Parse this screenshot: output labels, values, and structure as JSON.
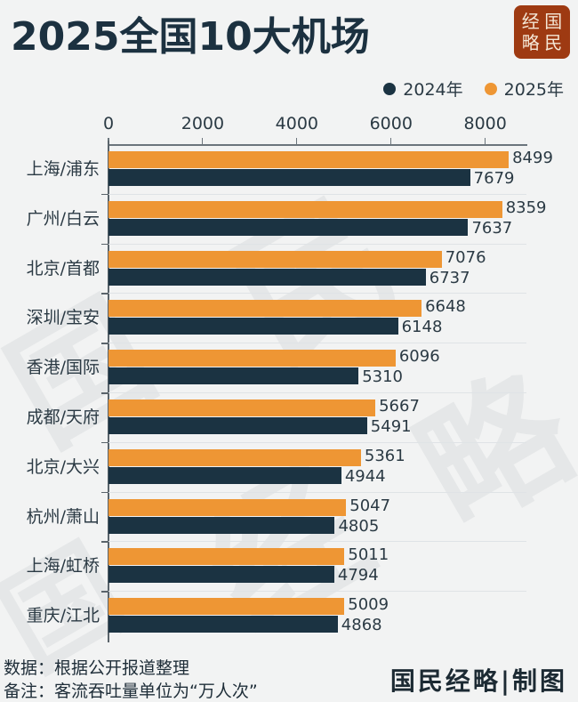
{
  "title": "2025全国10大机场",
  "logo": {
    "chars": [
      "经",
      "国",
      "略",
      "民"
    ]
  },
  "legend": [
    {
      "label": "2024年",
      "color": "#1b3342"
    },
    {
      "label": "2025年",
      "color": "#ee9634"
    }
  ],
  "watermark": [
    "国",
    "民",
    "经",
    "略"
  ],
  "footer": {
    "source": "数据：根据公开报道整理",
    "note": "备注：客流吞吐量单位为“万人次”",
    "credit": "国民经略|制图"
  },
  "chart_data": {
    "type": "bar",
    "orientation": "horizontal",
    "title": "2025全国10大机场",
    "xlabel": "",
    "ylabel": "",
    "unit": "万人次",
    "xlim": [
      0,
      8900
    ],
    "x_ticks": [
      0,
      2000,
      4000,
      6000,
      8000
    ],
    "grid": true,
    "legend_position": "top-right",
    "categories": [
      "上海/浦东",
      "广州/白云",
      "北京/首都",
      "深圳/宝安",
      "香港/国际",
      "成都/天府",
      "北京/大兴",
      "杭州/萧山",
      "上海/虹桥",
      "重庆/江北"
    ],
    "series": [
      {
        "name": "2025年",
        "color": "#ee9634",
        "values": [
          8499,
          8359,
          7076,
          6648,
          6096,
          5667,
          5361,
          5047,
          5011,
          5009
        ]
      },
      {
        "name": "2024年",
        "color": "#1b3342",
        "values": [
          7679,
          7637,
          6737,
          6148,
          5310,
          5491,
          4944,
          4805,
          4794,
          4868
        ]
      }
    ]
  }
}
